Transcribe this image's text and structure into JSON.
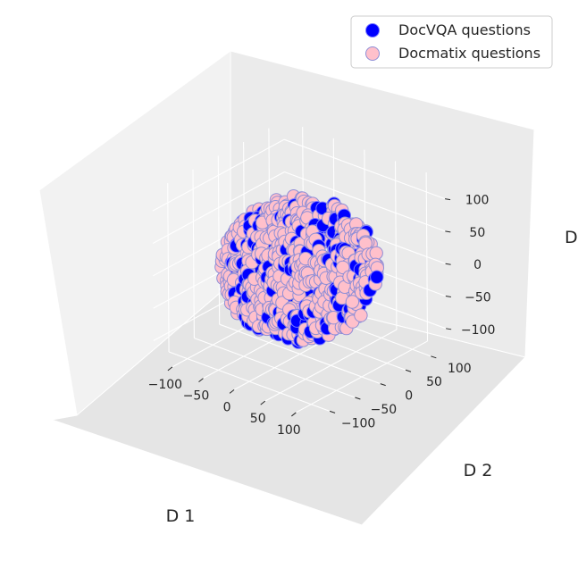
{
  "chart_data": {
    "type": "scatter",
    "projection": "3d",
    "title": "",
    "axes": {
      "x": {
        "label": "D 1",
        "ticks": [
          -100,
          -50,
          0,
          50,
          100
        ],
        "range": [
          -130,
          130
        ]
      },
      "y": {
        "label": "D 2",
        "ticks": [
          -100,
          -50,
          0,
          50,
          100
        ],
        "range": [
          -130,
          130
        ]
      },
      "z": {
        "label": "D",
        "ticks": [
          -100,
          -50,
          0,
          50,
          100
        ],
        "range": [
          -130,
          130
        ]
      }
    },
    "grid": true,
    "legend_position": "top-right",
    "series": [
      {
        "name": "DocVQA questions",
        "color": "#0000ff",
        "edge_color": "#7b7bff",
        "distribution": "sphere-of-points",
        "radius": 100,
        "count": 280,
        "seed": 7
      },
      {
        "name": "Docmatix questions",
        "color": "#ffc0cb",
        "edge_color": "#8e8ed6",
        "distribution": "sphere-of-points",
        "radius": 100,
        "count": 950,
        "seed": 13
      }
    ]
  }
}
